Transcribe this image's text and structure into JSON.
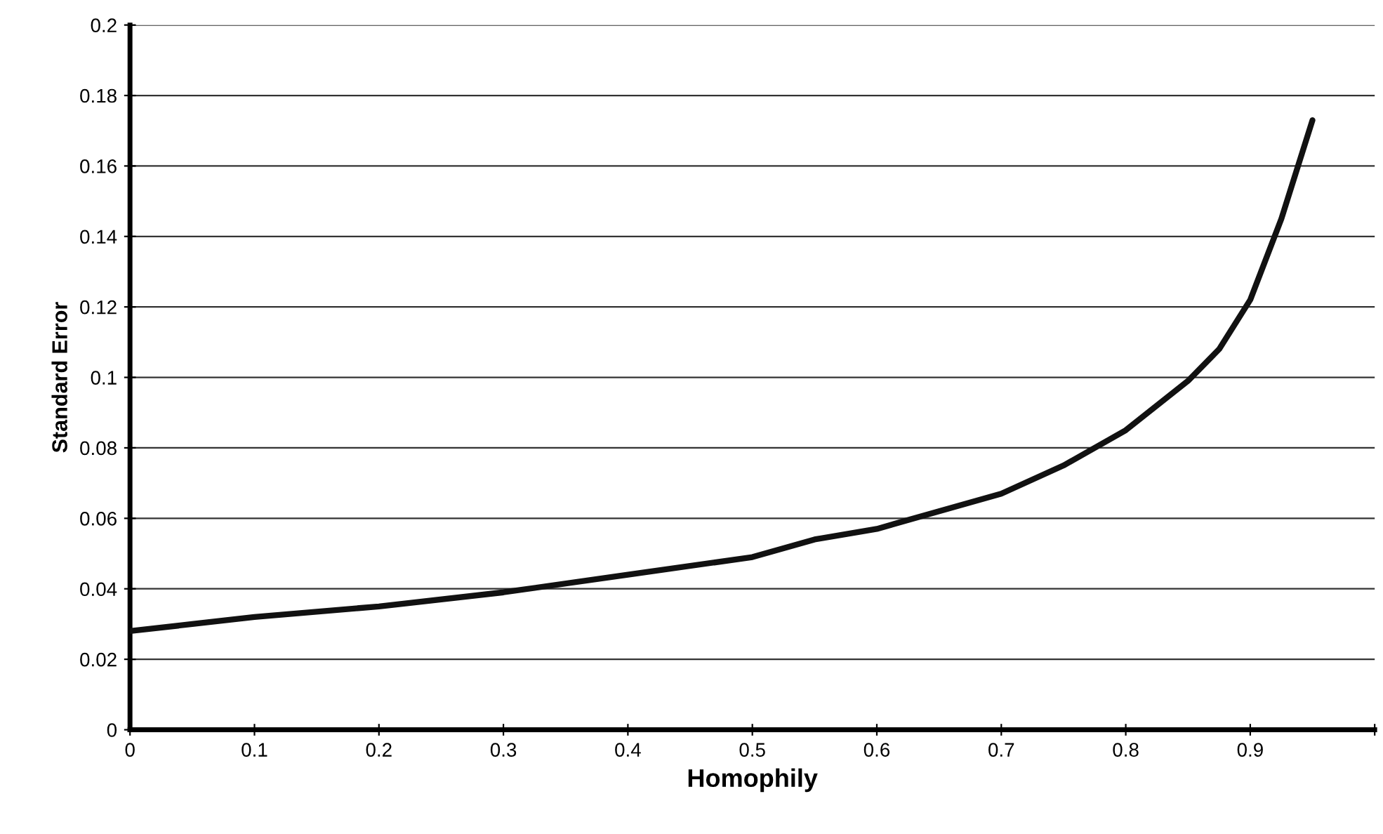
{
  "chart_data": {
    "type": "line",
    "xlabel": "Homophily",
    "ylabel": "Standard Error",
    "x": [
      0,
      0.05,
      0.1,
      0.2,
      0.3,
      0.4,
      0.5,
      0.55,
      0.6,
      0.65,
      0.7,
      0.75,
      0.8,
      0.85,
      0.875,
      0.9,
      0.925,
      0.95
    ],
    "series": [
      {
        "color": "#111111",
        "values": [
          0.028,
          0.03,
          0.032,
          0.035,
          0.039,
          0.044,
          0.049,
          0.054,
          0.057,
          0.062,
          0.067,
          0.075,
          0.085,
          0.099,
          0.108,
          0.122,
          0.145,
          0.173
        ]
      }
    ],
    "xlim": [
      0,
      1.0
    ],
    "xticks": [
      0,
      0.1,
      0.2,
      0.3,
      0.4,
      0.5,
      0.6,
      0.7,
      0.8,
      0.9,
      {
        "value": 1.0,
        "label": null
      }
    ],
    "ylim": [
      0,
      0.2
    ],
    "yticks": [
      0,
      0.02,
      0.04,
      0.06,
      0.08,
      0.1,
      0.12,
      0.14,
      0.16,
      0.18,
      0.2
    ],
    "grid": "y",
    "marker": "none",
    "line_style": "solid",
    "legend": false
  }
}
